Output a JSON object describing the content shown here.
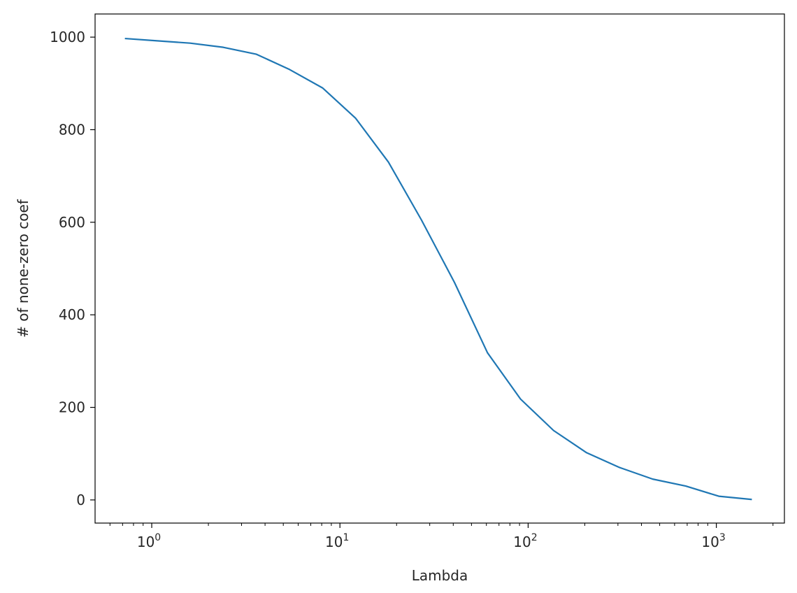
{
  "chart_data": {
    "type": "line",
    "title": "",
    "xlabel": "Lambda",
    "ylabel": "# of none-zero coef",
    "xscale": "log",
    "xlim": [
      0.5,
      2300
    ],
    "ylim": [
      -50,
      1050
    ],
    "grid": false,
    "legend": "none",
    "line_color": "#1f77b4",
    "x_ticks": [
      {
        "value": 1,
        "base": "10",
        "exp": "0"
      },
      {
        "value": 10,
        "base": "10",
        "exp": "1"
      },
      {
        "value": 100,
        "base": "10",
        "exp": "2"
      },
      {
        "value": 1000,
        "base": "10",
        "exp": "3"
      }
    ],
    "y_ticks": [
      {
        "value": 0,
        "label": "0"
      },
      {
        "value": 200,
        "label": "200"
      },
      {
        "value": 400,
        "label": "400"
      },
      {
        "value": 600,
        "label": "600"
      },
      {
        "value": 800,
        "label": "800"
      },
      {
        "value": 1000,
        "label": "1000"
      }
    ],
    "series": [
      {
        "x": [
          0.72,
          1.07,
          1.6,
          2.4,
          3.6,
          5.4,
          8.1,
          12.1,
          18.1,
          27.1,
          40.6,
          60.8,
          91.1,
          136.5,
          204.5,
          306.4,
          459.1,
          687.9,
          1030.7,
          1544.4
        ],
        "y": [
          997,
          992,
          987,
          978,
          963,
          930,
          890,
          825,
          730,
          605,
          470,
          318,
          218,
          150,
          102,
          70,
          45,
          30,
          8,
          1
        ]
      }
    ]
  }
}
